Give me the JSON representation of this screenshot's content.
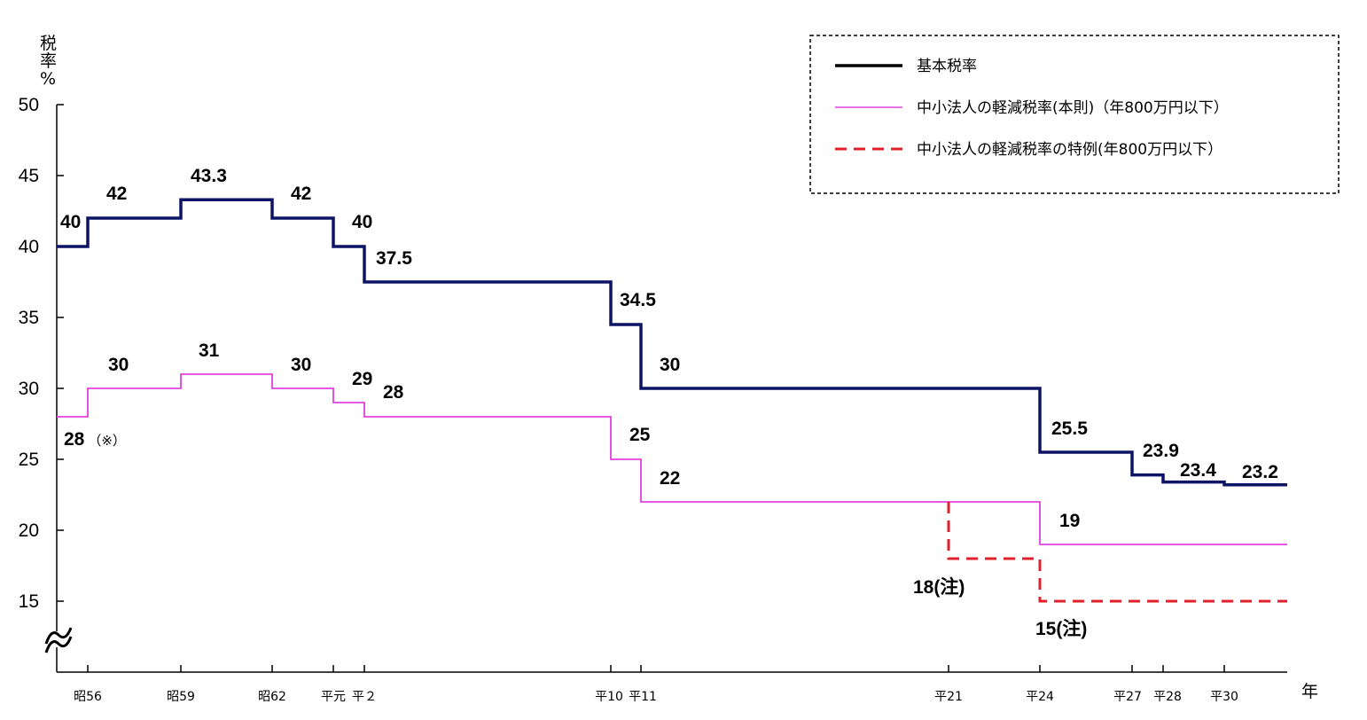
{
  "chart_data": {
    "type": "line",
    "step": true,
    "ylabel": [
      "税",
      "率",
      "%"
    ],
    "xlabel": "年",
    "ylim": [
      10,
      50
    ],
    "yticks": [
      50,
      45,
      40,
      35,
      30,
      25,
      20,
      15
    ],
    "y_axis_break": true,
    "legend": {
      "placement": "top-right",
      "border": "dashed",
      "entries": [
        {
          "label": "基本税率",
          "color": "#000000",
          "style": "solid-thick"
        },
        {
          "label": "中小法人の軽減税率(本則)（年800万円以下）",
          "color": "#e040e0",
          "style": "solid-thin"
        },
        {
          "label": "中小法人の軽減税率の特例(年800万円以下）",
          "color": "#e0202a",
          "style": "dashed"
        }
      ]
    },
    "x_ticks": [
      "昭56",
      "昭59",
      "昭62",
      "平元",
      "平２",
      "平10",
      "平11",
      "平21",
      "平24",
      "平27",
      "平28",
      "平30"
    ],
    "series": [
      {
        "color": "#0d1466",
        "steps": [
          {
            "from": "start",
            "to": "昭56",
            "value": 40
          },
          {
            "from": "昭56",
            "to": "昭59",
            "value": 42
          },
          {
            "from": "昭59",
            "to": "昭62",
            "value": 43.3
          },
          {
            "from": "昭62",
            "to": "平元",
            "value": 42
          },
          {
            "from": "平元",
            "to": "平２",
            "value": 40
          },
          {
            "from": "平２",
            "to": "平10",
            "value": 37.5
          },
          {
            "from": "平10",
            "to": "平11",
            "value": 34.5
          },
          {
            "from": "平11",
            "to": "平24",
            "value": 30
          },
          {
            "from": "平24",
            "to": "平27",
            "value": 25.5
          },
          {
            "from": "平27",
            "to": "平28",
            "value": 23.9
          },
          {
            "from": "平28",
            "to": "平30",
            "value": 23.4
          },
          {
            "from": "平30",
            "to": "end",
            "value": 23.2
          }
        ]
      },
      {
        "color": "#e040e0",
        "steps": [
          {
            "from": "start",
            "to": "昭56",
            "value": 28
          },
          {
            "from": "昭56",
            "to": "昭59",
            "value": 30
          },
          {
            "from": "昭59",
            "to": "昭62",
            "value": 31
          },
          {
            "from": "昭62",
            "to": "平元",
            "value": 30
          },
          {
            "from": "平元",
            "to": "平２",
            "value": 29
          },
          {
            "from": "平２",
            "to": "平10",
            "value": 28
          },
          {
            "from": "平10",
            "to": "平11",
            "value": 25
          },
          {
            "from": "平11",
            "to": "平24",
            "value": 22
          },
          {
            "from": "平24",
            "to": "end",
            "value": 19
          }
        ]
      },
      {
        "color": "#e0202a",
        "dashed": true,
        "steps": [
          {
            "from": "平21",
            "to": "平21",
            "value": 22
          },
          {
            "from": "平21",
            "to": "平24",
            "value": 18
          },
          {
            "from": "平24",
            "to": "end",
            "value": 15
          }
        ]
      }
    ],
    "annotations": [
      {
        "text": "40",
        "series": 0
      },
      {
        "text": "42",
        "series": 0
      },
      {
        "text": "43.3",
        "series": 0
      },
      {
        "text": "42",
        "series": 0
      },
      {
        "text": "40",
        "series": 0
      },
      {
        "text": "37.5",
        "series": 0
      },
      {
        "text": "34.5",
        "series": 0
      },
      {
        "text": "30",
        "series": 0
      },
      {
        "text": "25.5",
        "series": 0
      },
      {
        "text": "23.9",
        "series": 0
      },
      {
        "text": "23.4",
        "series": 0
      },
      {
        "text": "23.2",
        "series": 0
      },
      {
        "text": "28",
        "note": "（※）",
        "series": 1
      },
      {
        "text": "30",
        "series": 1
      },
      {
        "text": "31",
        "series": 1
      },
      {
        "text": "30",
        "series": 1
      },
      {
        "text": "29",
        "series": 1
      },
      {
        "text": "28",
        "series": 1
      },
      {
        "text": "25",
        "series": 1
      },
      {
        "text": "22",
        "series": 1
      },
      {
        "text": "19",
        "series": 1
      },
      {
        "text": "18(注)",
        "series": 2
      },
      {
        "text": "15(注)",
        "series": 2
      }
    ]
  }
}
